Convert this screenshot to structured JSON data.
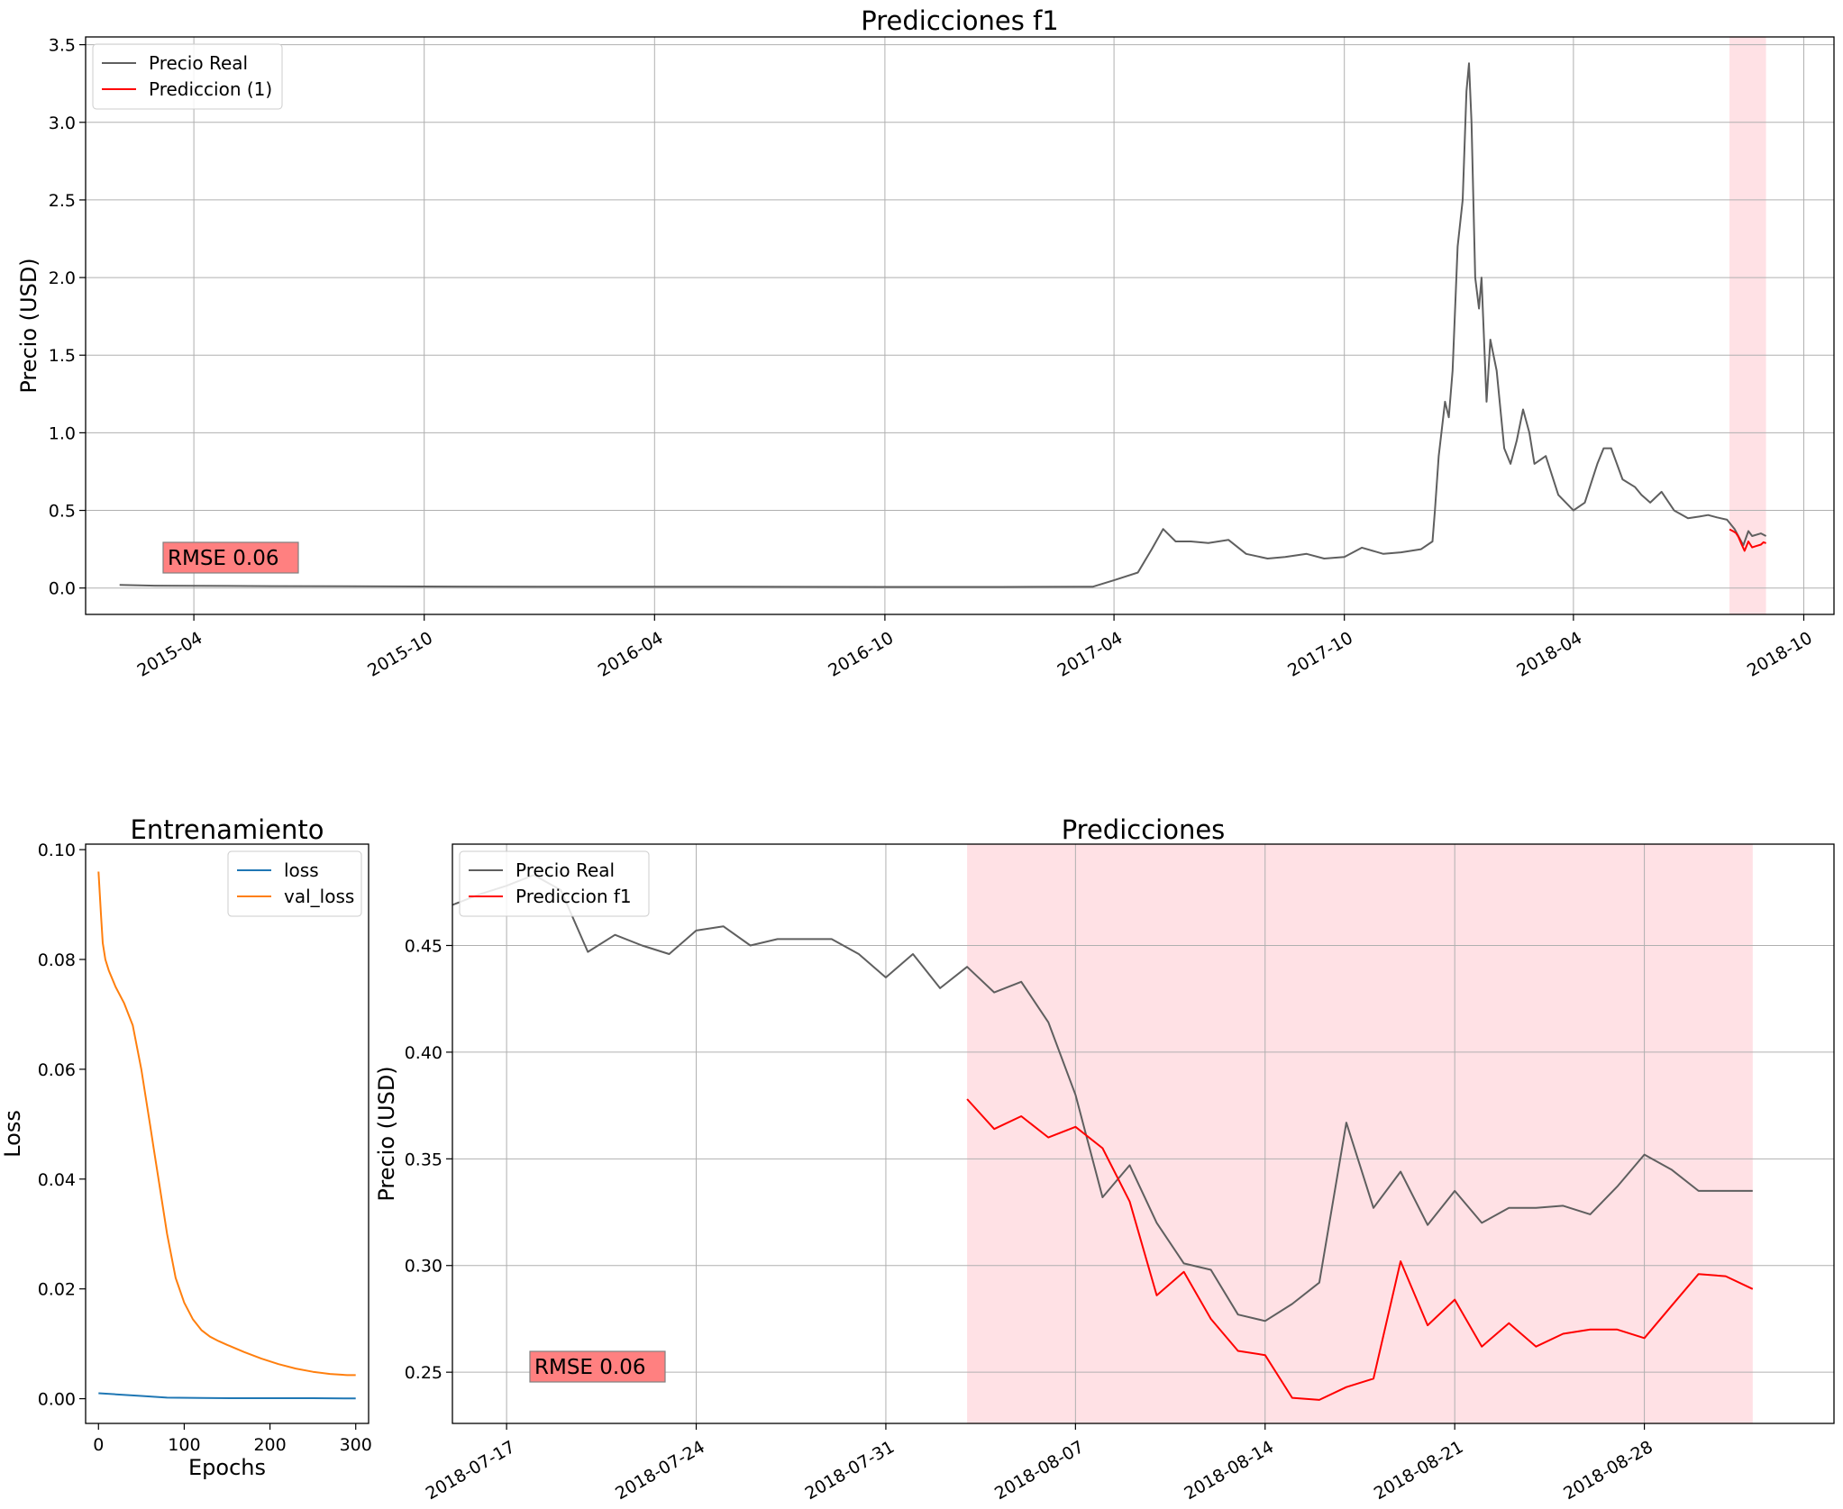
{
  "chart_data": [
    {
      "type": "line",
      "title": "Predicciones f1",
      "xlabel": "",
      "ylabel": "Precio (USD)",
      "x_range": [
        "2015-01-05",
        "2018-10-25"
      ],
      "ylim": [
        -0.17,
        3.55
      ],
      "x_ticks": [
        "2015-04",
        "2015-10",
        "2016-04",
        "2016-10",
        "2017-04",
        "2017-10",
        "2018-04",
        "2018-10"
      ],
      "x_tick_dates": [
        "2015-04-01",
        "2015-10-01",
        "2016-04-01",
        "2016-10-01",
        "2017-04-01",
        "2017-10-01",
        "2018-04-01",
        "2018-10-01"
      ],
      "y_ticks": [
        0.0,
        0.5,
        1.0,
        1.5,
        2.0,
        2.5,
        3.0,
        3.5
      ],
      "y_tick_labels": [
        "0.0",
        "0.5",
        "1.0",
        "1.5",
        "2.0",
        "2.5",
        "3.0",
        "3.5"
      ],
      "grid": true,
      "legend_position": "top-left",
      "highlight_span": [
        "2018-08-03",
        "2018-09-01"
      ],
      "highlight_color": "#ffe1e5",
      "annotation": "RMSE   0.06",
      "annotation_position": "bottom-left",
      "series": [
        {
          "name": "Precio Real",
          "color": "#5f5f5f",
          "x": [
            "2015-02-01",
            "2015-03-01",
            "2015-06-01",
            "2015-10-01",
            "2016-01-01",
            "2016-06-01",
            "2016-10-01",
            "2017-01-01",
            "2017-03-15",
            "2017-04-01",
            "2017-04-20",
            "2017-05-01",
            "2017-05-10",
            "2017-05-20",
            "2017-06-01",
            "2017-06-15",
            "2017-07-01",
            "2017-07-15",
            "2017-08-01",
            "2017-08-15",
            "2017-09-01",
            "2017-09-15",
            "2017-10-01",
            "2017-10-15",
            "2017-11-01",
            "2017-11-15",
            "2017-12-01",
            "2017-12-10",
            "2017-12-12",
            "2017-12-15",
            "2017-12-20",
            "2017-12-23",
            "2017-12-26",
            "2017-12-30",
            "2018-01-03",
            "2018-01-06",
            "2018-01-08",
            "2018-01-10",
            "2018-01-13",
            "2018-01-16",
            "2018-01-18",
            "2018-01-22",
            "2018-01-25",
            "2018-01-30",
            "2018-02-05",
            "2018-02-10",
            "2018-02-15",
            "2018-02-20",
            "2018-02-25",
            "2018-03-01",
            "2018-03-10",
            "2018-03-20",
            "2018-04-01",
            "2018-04-10",
            "2018-04-20",
            "2018-04-25",
            "2018-05-01",
            "2018-05-10",
            "2018-05-20",
            "2018-05-25",
            "2018-06-01",
            "2018-06-10",
            "2018-06-20",
            "2018-07-01",
            "2018-07-10",
            "2018-07-17",
            "2018-07-24",
            "2018-08-01",
            "2018-08-07",
            "2018-08-14",
            "2018-08-18",
            "2018-08-21",
            "2018-08-28",
            "2018-09-01"
          ],
          "values": [
            0.02,
            0.015,
            0.012,
            0.01,
            0.008,
            0.008,
            0.007,
            0.007,
            0.008,
            0.05,
            0.1,
            0.25,
            0.38,
            0.3,
            0.3,
            0.29,
            0.31,
            0.22,
            0.19,
            0.2,
            0.22,
            0.19,
            0.2,
            0.26,
            0.22,
            0.23,
            0.25,
            0.3,
            0.5,
            0.85,
            1.2,
            1.1,
            1.4,
            2.2,
            2.5,
            3.2,
            3.38,
            3.0,
            2.0,
            1.8,
            2.0,
            1.2,
            1.6,
            1.4,
            0.9,
            0.8,
            0.95,
            1.15,
            1.0,
            0.8,
            0.85,
            0.6,
            0.5,
            0.55,
            0.8,
            0.9,
            0.9,
            0.7,
            0.65,
            0.6,
            0.55,
            0.62,
            0.5,
            0.45,
            0.46,
            0.47,
            0.455,
            0.44,
            0.38,
            0.275,
            0.367,
            0.335,
            0.352,
            0.335
          ]
        },
        {
          "name": "Prediccion (1)",
          "color": "#ff0000",
          "x": [
            "2018-08-03",
            "2018-08-06",
            "2018-08-08",
            "2018-08-10",
            "2018-08-13",
            "2018-08-15",
            "2018-08-18",
            "2018-08-21",
            "2018-08-24",
            "2018-08-28",
            "2018-08-30",
            "2018-09-01"
          ],
          "values": [
            0.378,
            0.365,
            0.355,
            0.33,
            0.275,
            0.24,
            0.3,
            0.262,
            0.27,
            0.28,
            0.295,
            0.289
          ]
        }
      ]
    },
    {
      "type": "line",
      "title": "Entrenamiento",
      "xlabel": "Epochs",
      "ylabel": "Loss",
      "xlim": [
        -15,
        315
      ],
      "ylim": [
        -0.0045,
        0.101
      ],
      "x_ticks": [
        0,
        100,
        200,
        300
      ],
      "x_tick_labels": [
        "0",
        "100",
        "200",
        "300"
      ],
      "y_ticks": [
        0.0,
        0.02,
        0.04,
        0.06,
        0.08,
        0.1
      ],
      "y_tick_labels": [
        "0.00",
        "0.02",
        "0.04",
        "0.06",
        "0.08",
        "0.10"
      ],
      "grid": false,
      "legend_position": "top-right",
      "series": [
        {
          "name": "loss",
          "color": "#1f77b4",
          "x": [
            0,
            20,
            50,
            80,
            120,
            160,
            200,
            250,
            300
          ],
          "values": [
            0.001,
            0.0008,
            0.0005,
            0.0002,
            0.00015,
            0.0001,
            0.0001,
            0.0001,
            5e-05
          ]
        },
        {
          "name": "val_loss",
          "color": "#ff7f0e",
          "x": [
            0,
            3,
            5,
            8,
            12,
            20,
            30,
            40,
            50,
            55,
            60,
            65,
            70,
            80,
            90,
            100,
            110,
            120,
            130,
            140,
            150,
            170,
            190,
            210,
            230,
            250,
            270,
            290,
            300
          ],
          "values": [
            0.096,
            0.088,
            0.083,
            0.08,
            0.078,
            0.075,
            0.072,
            0.068,
            0.06,
            0.055,
            0.05,
            0.045,
            0.04,
            0.03,
            0.022,
            0.0175,
            0.0145,
            0.0125,
            0.0113,
            0.0105,
            0.0098,
            0.0085,
            0.0073,
            0.0063,
            0.0055,
            0.0049,
            0.0045,
            0.0043,
            0.0043
          ]
        }
      ]
    },
    {
      "type": "line",
      "title": "Predicciones",
      "xlabel": "",
      "ylabel": "Precio (USD)",
      "x_range": [
        "2018-07-15",
        "2018-09-04"
      ],
      "ylim": [
        0.226,
        0.4975
      ],
      "x_ticks": [
        "2018-07-17",
        "2018-07-24",
        "2018-07-31",
        "2018-08-07",
        "2018-08-14",
        "2018-08-21",
        "2018-08-28"
      ],
      "y_ticks": [
        0.25,
        0.3,
        0.35,
        0.4,
        0.45
      ],
      "y_tick_labels": [
        "0.25",
        "0.30",
        "0.35",
        "0.40",
        "0.45"
      ],
      "grid": true,
      "legend_position": "top-left",
      "highlight_span": [
        "2018-08-03",
        "2018-09-01"
      ],
      "highlight_color": "#ffe1e5",
      "annotation": "RMSE   0.06",
      "annotation_position": "bottom-left",
      "series": [
        {
          "name": "Precio Real",
          "color": "#5f5f5f",
          "x": [
            "2018-07-15",
            "2018-07-16",
            "2018-07-17",
            "2018-07-18",
            "2018-07-19",
            "2018-07-20",
            "2018-07-21",
            "2018-07-22",
            "2018-07-23",
            "2018-07-24",
            "2018-07-25",
            "2018-07-26",
            "2018-07-27",
            "2018-07-28",
            "2018-07-29",
            "2018-07-30",
            "2018-07-31",
            "2018-08-01",
            "2018-08-02",
            "2018-08-03",
            "2018-08-04",
            "2018-08-05",
            "2018-08-06",
            "2018-08-07",
            "2018-08-08",
            "2018-08-09",
            "2018-08-10",
            "2018-08-11",
            "2018-08-12",
            "2018-08-13",
            "2018-08-14",
            "2018-08-15",
            "2018-08-16",
            "2018-08-17",
            "2018-08-18",
            "2018-08-19",
            "2018-08-20",
            "2018-08-21",
            "2018-08-22",
            "2018-08-23",
            "2018-08-24",
            "2018-08-25",
            "2018-08-26",
            "2018-08-27",
            "2018-08-28",
            "2018-08-29",
            "2018-08-30",
            "2018-08-31",
            "2018-09-01"
          ],
          "values": [
            0.469,
            0.474,
            0.478,
            0.483,
            0.476,
            0.447,
            0.455,
            0.45,
            0.446,
            0.457,
            0.459,
            0.45,
            0.453,
            0.453,
            0.453,
            0.446,
            0.435,
            0.446,
            0.43,
            0.44,
            0.428,
            0.433,
            0.414,
            0.38,
            0.332,
            0.347,
            0.32,
            0.301,
            0.298,
            0.277,
            0.274,
            0.282,
            0.292,
            0.367,
            0.327,
            0.344,
            0.319,
            0.335,
            0.32,
            0.327,
            0.327,
            0.328,
            0.324,
            0.337,
            0.352,
            0.345,
            0.335,
            0.335,
            0.335
          ]
        },
        {
          "name": "Prediccion f1",
          "color": "#ff0000",
          "x": [
            "2018-08-03",
            "2018-08-04",
            "2018-08-05",
            "2018-08-06",
            "2018-08-07",
            "2018-08-08",
            "2018-08-09",
            "2018-08-10",
            "2018-08-11",
            "2018-08-12",
            "2018-08-13",
            "2018-08-14",
            "2018-08-15",
            "2018-08-16",
            "2018-08-17",
            "2018-08-18",
            "2018-08-19",
            "2018-08-20",
            "2018-08-21",
            "2018-08-22",
            "2018-08-23",
            "2018-08-24",
            "2018-08-25",
            "2018-08-26",
            "2018-08-27",
            "2018-08-28",
            "2018-08-29",
            "2018-08-30",
            "2018-08-31",
            "2018-09-01"
          ],
          "values": [
            0.378,
            0.364,
            0.37,
            0.36,
            0.365,
            0.355,
            0.33,
            0.286,
            0.297,
            0.275,
            0.26,
            0.258,
            0.238,
            0.237,
            0.243,
            0.247,
            0.302,
            0.272,
            0.284,
            0.262,
            0.273,
            0.262,
            0.268,
            0.27,
            0.27,
            0.266,
            0.281,
            0.296,
            0.295,
            0.289
          ]
        }
      ]
    }
  ]
}
